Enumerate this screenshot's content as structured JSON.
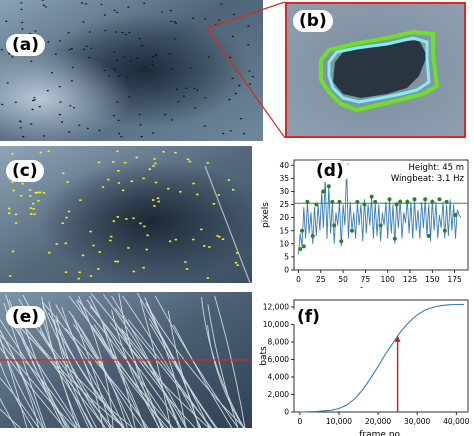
{
  "panels": {
    "a": {
      "label": "(a)"
    },
    "b": {
      "label": "(b)"
    },
    "c": {
      "label": "(c)"
    },
    "d": {
      "label": "(d)"
    },
    "e": {
      "label": "(e)"
    },
    "f": {
      "label": "(f)"
    }
  },
  "colors": {
    "sky_dark": "#2c3f52",
    "sky_light": "#9fb3c3",
    "zoom_border": "#d9281e",
    "contour_green": "#6ee02a",
    "contour_cyan": "#7ff0f2",
    "detection_yellow": "#f2f21a",
    "series_blue": "#3a7cb8",
    "peak_green": "#2e7d32",
    "threshold_green": "#1f9e1f",
    "marker_red": "#c0221b"
  },
  "chart_data": [
    {
      "id": "d",
      "type": "line",
      "annotations": [
        "Height: 45 m",
        "Wingbeat: 3.1 Hz"
      ],
      "xlabel": "frame no.",
      "ylabel": "pixels",
      "xlim": [
        -5,
        190
      ],
      "ylim": [
        0,
        42
      ],
      "xticks": [
        0,
        25,
        50,
        75,
        100,
        125,
        150,
        175
      ],
      "yticks": [
        0,
        5,
        10,
        15,
        20,
        25,
        30,
        35,
        40
      ],
      "threshold": 25.5,
      "x_start": 0,
      "x_step": 2,
      "values": [
        6,
        14,
        9,
        24,
        12,
        26,
        14,
        22,
        10,
        24,
        13,
        25,
        15,
        30,
        16,
        35,
        12,
        32,
        14,
        26,
        10,
        22,
        17,
        26,
        9,
        25,
        17,
        40,
        12,
        26,
        15,
        22,
        12,
        26,
        17,
        25,
        11,
        27,
        14,
        25,
        17,
        28,
        12,
        26,
        13,
        25,
        11,
        22,
        17,
        26,
        12,
        27,
        14,
        25,
        10,
        26,
        16,
        27,
        12,
        22,
        18,
        27,
        14,
        26,
        12,
        27,
        15,
        23,
        12,
        26,
        16,
        27,
        13,
        25,
        11,
        27,
        15,
        26,
        12,
        21,
        16,
        26,
        12,
        25,
        13,
        27,
        15,
        25,
        12,
        23,
        21,
        20
      ],
      "peaks": [
        [
          4,
          15
        ],
        [
          10,
          26
        ],
        [
          20,
          25
        ],
        [
          28,
          30
        ],
        [
          30,
          36
        ],
        [
          34,
          32
        ],
        [
          38,
          26
        ],
        [
          46,
          26
        ],
        [
          54,
          40
        ],
        [
          66,
          26
        ],
        [
          74,
          25
        ],
        [
          82,
          28
        ],
        [
          86,
          26
        ],
        [
          102,
          27
        ],
        [
          110,
          25
        ],
        [
          114,
          26
        ],
        [
          122,
          26
        ],
        [
          130,
          27
        ],
        [
          142,
          27
        ],
        [
          150,
          26
        ],
        [
          158,
          27
        ],
        [
          166,
          26
        ],
        [
          176,
          21
        ]
      ],
      "troughs": [
        [
          2,
          8
        ],
        [
          6,
          9
        ],
        [
          16,
          13
        ],
        [
          40,
          17
        ],
        [
          48,
          11
        ],
        [
          60,
          15
        ],
        [
          92,
          17
        ],
        [
          108,
          12
        ],
        [
          146,
          13
        ],
        [
          164,
          15
        ]
      ],
      "series": [
        {
          "name": ""
        }
      ]
    },
    {
      "id": "f",
      "type": "line",
      "xlabel": "frame no.",
      "ylabel": "bats",
      "xlim": [
        -1500,
        43000
      ],
      "ylim": [
        0,
        12800
      ],
      "xticks": [
        0,
        10000,
        20000,
        30000,
        40000
      ],
      "xtick_labels": [
        "0",
        "10,000",
        "20,000",
        "30,000",
        "40,000"
      ],
      "yticks": [
        0,
        2000,
        4000,
        6000,
        8000,
        10000,
        12000
      ],
      "ytick_labels": [
        "0",
        "2,000",
        "4,000",
        "6,000",
        "8,000",
        "10,000",
        "12,000"
      ],
      "x": [
        0,
        4000,
        8000,
        10000,
        12000,
        14000,
        16000,
        18000,
        20000,
        22000,
        24000,
        25000,
        26000,
        28000,
        30000,
        32000,
        34000,
        36000,
        38000,
        40000,
        42000
      ],
      "values": [
        0,
        50,
        200,
        400,
        800,
        1500,
        2500,
        3800,
        5200,
        6700,
        8000,
        8700,
        9300,
        10300,
        11100,
        11650,
        11950,
        12150,
        12250,
        12280,
        12300
      ],
      "marker_x": 25000,
      "marker_y": 8700,
      "series": [
        {
          "name": ""
        }
      ]
    }
  ]
}
